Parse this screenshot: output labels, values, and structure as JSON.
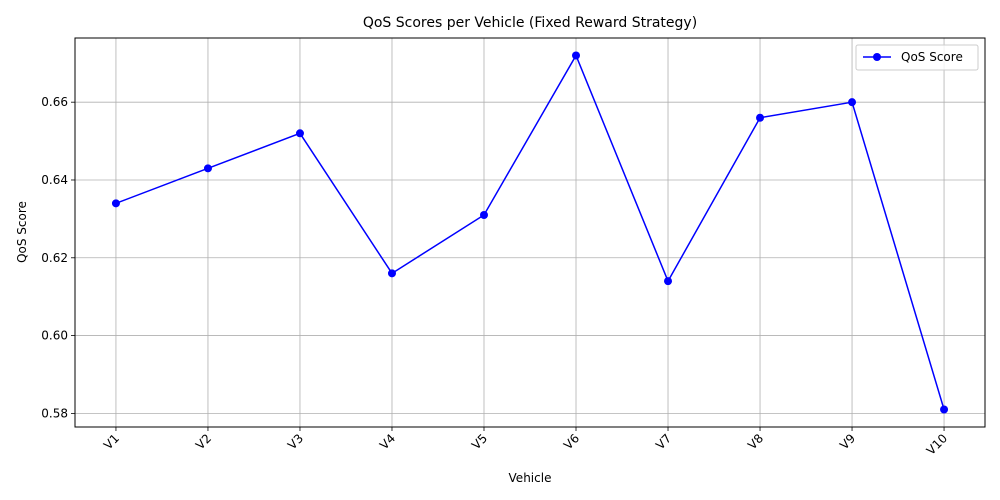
{
  "chart_data": {
    "type": "line",
    "title": "QoS Scores per Vehicle (Fixed Reward Strategy)",
    "xlabel": "Vehicle",
    "ylabel": "QoS Score",
    "categories": [
      "V1",
      "V2",
      "V3",
      "V4",
      "V5",
      "V6",
      "V7",
      "V8",
      "V9",
      "V10"
    ],
    "series": [
      {
        "name": "QoS Score",
        "values": [
          0.634,
          0.643,
          0.652,
          0.616,
          0.631,
          0.672,
          0.614,
          0.656,
          0.66,
          0.581
        ],
        "color": "#0000ff",
        "marker": "circle"
      }
    ],
    "ylim": [
      0.5765,
      0.6765
    ],
    "yticks": [
      0.58,
      0.6,
      0.62,
      0.64,
      0.66
    ],
    "ytick_labels": [
      "0.58",
      "0.60",
      "0.62",
      "0.64",
      "0.66"
    ],
    "xtick_rotation": 45,
    "grid": true,
    "grid_color": "#b0b0b0",
    "legend": {
      "placement": "top-right"
    }
  }
}
